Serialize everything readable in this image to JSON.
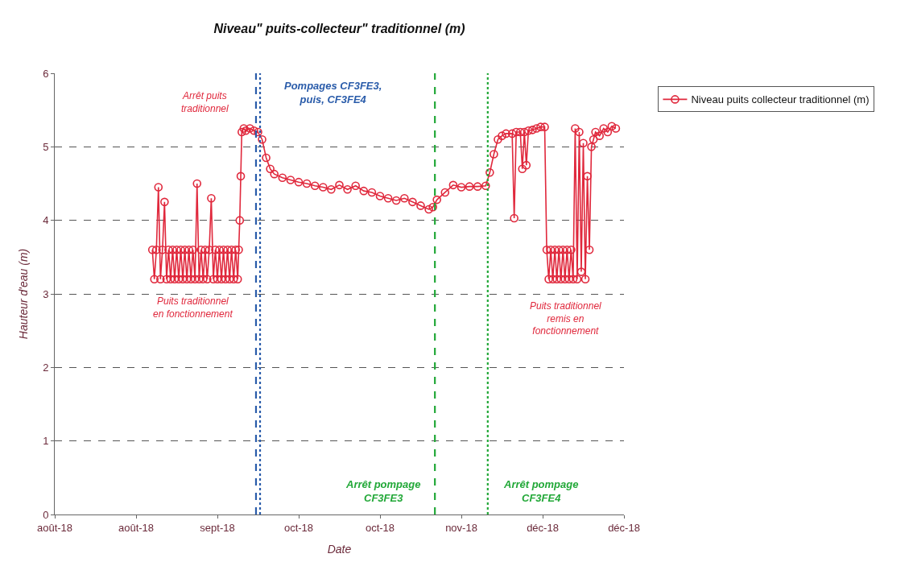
{
  "chart_data": {
    "type": "line",
    "title": "Niveau\" puits-collecteur\" traditionnel (m)",
    "xlabel": "Date",
    "ylabel": "Hauteur d'eau (m)",
    "xlim": [
      "2018-08-05",
      "2018-12-23"
    ],
    "xticks": [
      {
        "value": "2018-08-05",
        "label": "août-18"
      },
      {
        "value": "2018-08-25",
        "label": "août-18"
      },
      {
        "value": "2018-09-14",
        "label": "sept-18"
      },
      {
        "value": "2018-10-04",
        "label": "oct-18"
      },
      {
        "value": "2018-10-24",
        "label": "oct-18"
      },
      {
        "value": "2018-11-13",
        "label": "nov-18"
      },
      {
        "value": "2018-12-03",
        "label": "déc-18"
      },
      {
        "value": "2018-12-23",
        "label": "déc-18"
      }
    ],
    "ylim": [
      0,
      6
    ],
    "yticks": [
      0,
      1,
      2,
      3,
      4,
      5,
      6
    ],
    "grid": "y",
    "legend": "top right",
    "marker": "circle",
    "line_style": "solid",
    "series": [
      {
        "name": "Niveau puits collecteur traditionnel (m)",
        "color": "#e0283c",
        "x": [
          "2018-08-29T00:00",
          "2018-08-29T12:00",
          "2018-08-30T00:00",
          "2018-08-30T12:00",
          "2018-08-31T00:00",
          "2018-08-31T12:00",
          "2018-09-01T00:00",
          "2018-09-01T12:00",
          "2018-09-02T00:00",
          "2018-09-02T12:00",
          "2018-09-03T00:00",
          "2018-09-03T12:00",
          "2018-09-04T00:00",
          "2018-09-04T12:00",
          "2018-09-05T00:00",
          "2018-09-05T12:00",
          "2018-09-06T00:00",
          "2018-09-06T12:00",
          "2018-09-07T00:00",
          "2018-09-07T12:00",
          "2018-09-08T00:00",
          "2018-09-08T12:00",
          "2018-09-09T00:00",
          "2018-09-09T12:00",
          "2018-09-10T00:00",
          "2018-09-10T12:00",
          "2018-09-11T00:00",
          "2018-09-11T12:00",
          "2018-09-12T00:00",
          "2018-09-12T12:00",
          "2018-09-13T00:00",
          "2018-09-13T12:00",
          "2018-09-14T00:00",
          "2018-09-14T12:00",
          "2018-09-15T00:00",
          "2018-09-15T12:00",
          "2018-09-16T00:00",
          "2018-09-16T12:00",
          "2018-09-17T00:00",
          "2018-09-17T12:00",
          "2018-09-18T00:00",
          "2018-09-18T12:00",
          "2018-09-19T00:00",
          "2018-09-19T06:00",
          "2018-09-19T12:00",
          "2018-09-19T18:00",
          "2018-09-20T00:00",
          "2018-09-20T12:00",
          "2018-09-21T00:00",
          "2018-09-22T00:00",
          "2018-09-23T00:00",
          "2018-09-24T00:00",
          "2018-09-25T00:00",
          "2018-09-26T00:00",
          "2018-09-27T00:00",
          "2018-09-28T00:00",
          "2018-09-30T00:00",
          "2018-10-02T00:00",
          "2018-10-04T00:00",
          "2018-10-06T00:00",
          "2018-10-08T00:00",
          "2018-10-10T00:00",
          "2018-10-12T00:00",
          "2018-10-14T00:00",
          "2018-10-16T00:00",
          "2018-10-18T00:00",
          "2018-10-20T00:00",
          "2018-10-22T00:00",
          "2018-10-24T00:00",
          "2018-10-26T00:00",
          "2018-10-28T00:00",
          "2018-10-30T00:00",
          "2018-11-01T00:00",
          "2018-11-03T00:00",
          "2018-11-05T00:00",
          "2018-11-06T00:00",
          "2018-11-07T00:00",
          "2018-11-09T00:00",
          "2018-11-11T00:00",
          "2018-11-13T00:00",
          "2018-11-15T00:00",
          "2018-11-17T00:00",
          "2018-11-19T00:00",
          "2018-11-20T00:00",
          "2018-11-21T00:00",
          "2018-11-22T00:00",
          "2018-11-23T00:00",
          "2018-11-24T00:00",
          "2018-11-25T12:00",
          "2018-11-26T00:00",
          "2018-11-26T12:00",
          "2018-11-27T12:00",
          "2018-11-28T00:00",
          "2018-11-28T12:00",
          "2018-11-29T00:00",
          "2018-11-29T12:00",
          "2018-11-30T12:00",
          "2018-12-01T12:00",
          "2018-12-02T12:00",
          "2018-12-03T12:00",
          "2018-12-04T00:00",
          "2018-12-04T12:00",
          "2018-12-05T00:00",
          "2018-12-05T12:00",
          "2018-12-06T00:00",
          "2018-12-06T12:00",
          "2018-12-07T00:00",
          "2018-12-07T12:00",
          "2018-12-08T00:00",
          "2018-12-08T12:00",
          "2018-12-09T00:00",
          "2018-12-09T12:00",
          "2018-12-10T00:00",
          "2018-12-10T12:00",
          "2018-12-11T00:00",
          "2018-12-11T12:00",
          "2018-12-12T00:00",
          "2018-12-12T12:00",
          "2018-12-13T00:00",
          "2018-12-13T12:00",
          "2018-12-14T00:00",
          "2018-12-14T12:00",
          "2018-12-15T00:00",
          "2018-12-15T12:00",
          "2018-12-16T00:00",
          "2018-12-17T00:00",
          "2018-12-18T00:00",
          "2018-12-19T00:00",
          "2018-12-20T00:00",
          "2018-12-21T00:00"
        ],
        "values": [
          3.6,
          3.2,
          3.6,
          4.45,
          3.2,
          3.6,
          4.25,
          3.2,
          3.6,
          3.2,
          3.6,
          3.2,
          3.6,
          3.2,
          3.6,
          3.2,
          3.6,
          3.2,
          3.6,
          3.2,
          3.6,
          3.2,
          4.5,
          3.2,
          3.6,
          3.2,
          3.6,
          3.2,
          3.6,
          4.3,
          3.2,
          3.6,
          3.2,
          3.6,
          3.2,
          3.6,
          3.2,
          3.6,
          3.2,
          3.6,
          3.2,
          3.6,
          3.2,
          3.6,
          4.0,
          4.6,
          5.2,
          5.25,
          5.22,
          5.25,
          5.22,
          5.2,
          5.1,
          4.85,
          4.7,
          4.63,
          4.58,
          4.55,
          4.52,
          4.5,
          4.47,
          4.45,
          4.42,
          4.48,
          4.42,
          4.47,
          4.4,
          4.38,
          4.33,
          4.3,
          4.27,
          4.3,
          4.25,
          4.2,
          4.15,
          4.18,
          4.28,
          4.38,
          4.48,
          4.45,
          4.46,
          4.46,
          4.47,
          4.65,
          4.9,
          5.1,
          5.15,
          5.18,
          5.18,
          4.03,
          5.2,
          5.2,
          4.7,
          5.2,
          4.75,
          5.22,
          5.23,
          5.25,
          5.27,
          5.27,
          3.6,
          3.2,
          3.6,
          3.2,
          3.6,
          3.2,
          3.6,
          3.2,
          3.6,
          3.2,
          3.6,
          3.2,
          3.6,
          3.2,
          5.25,
          3.2,
          5.2,
          3.3,
          5.05,
          3.2,
          4.6,
          3.6,
          5.0,
          5.1,
          5.2,
          5.15,
          5.25,
          5.2,
          5.28,
          5.25
        ]
      }
    ],
    "ref_lines": [
      {
        "axis": "x",
        "value": "2018-09-23T12:00",
        "color": "#2a5caa",
        "line_style": "dashed"
      },
      {
        "axis": "x",
        "value": "2018-09-24T12:00",
        "color": "#2a5caa",
        "line_style": "dotted"
      },
      {
        "axis": "x",
        "value": "2018-11-06T12:00",
        "color": "#22a838",
        "line_style": "dashed"
      },
      {
        "axis": "x",
        "value": "2018-11-19T12:00",
        "color": "#22a838",
        "line_style": "dotted"
      }
    ],
    "annotations": [
      "Arrêt puits\ntraditionnel",
      "Pompages CF3FE3,\npuis, CF3FE4",
      "Puits traditionnel\nen fonctionnement",
      "Puits traditionnel\nremis en\nfonctionnement",
      "Arrêt pompage\nCF3FE3",
      "Arrêt pompage\nCF3FE4"
    ]
  }
}
